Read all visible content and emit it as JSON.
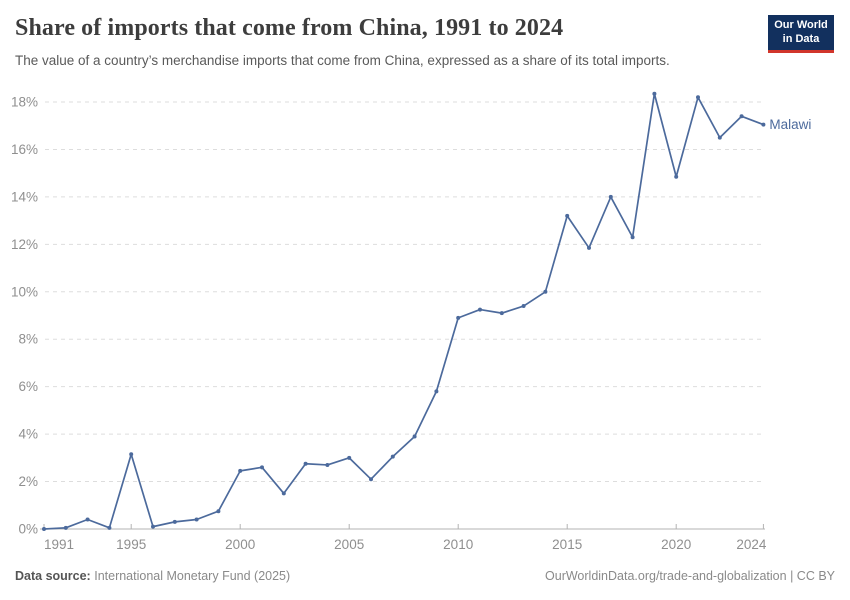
{
  "header": {
    "title": "Share of imports that come from China, 1991 to 2024",
    "subtitle": "The value of a country’s merchandise imports that come from China, expressed as a share of its total imports."
  },
  "logo": {
    "line1": "Our World",
    "line2": "in Data",
    "bg_color": "#12305e",
    "accent_color": "#d1352b"
  },
  "chart_data": {
    "type": "line",
    "title": "Share of imports that come from China, 1991 to 2024",
    "entity": "Malawi",
    "unit": "%",
    "x": [
      1991,
      1992,
      1993,
      1994,
      1995,
      1996,
      1997,
      1998,
      1999,
      2000,
      2001,
      2002,
      2003,
      2004,
      2005,
      2006,
      2007,
      2008,
      2009,
      2010,
      2011,
      2012,
      2013,
      2014,
      2015,
      2016,
      2017,
      2018,
      2019,
      2020,
      2021,
      2022,
      2023,
      2024
    ],
    "series": [
      {
        "name": "Malawi",
        "color": "#4c6a9c",
        "values": [
          0.0,
          0.05,
          0.4,
          0.05,
          3.15,
          0.1,
          0.3,
          0.4,
          0.75,
          2.45,
          2.6,
          1.5,
          2.75,
          2.7,
          3.0,
          2.1,
          3.05,
          3.9,
          5.8,
          8.9,
          9.25,
          9.1,
          9.4,
          10.0,
          13.2,
          11.85,
          14.0,
          12.3,
          18.35,
          14.85,
          18.2,
          16.5,
          17.4,
          17.05
        ]
      }
    ],
    "ylim": [
      0,
      18
    ],
    "ytick_step": 2,
    "ytick_labels": [
      "0%",
      "2%",
      "4%",
      "6%",
      "8%",
      "10%",
      "12%",
      "14%",
      "16%",
      "18%"
    ],
    "xticks": [
      1991,
      1995,
      2000,
      2005,
      2010,
      2015,
      2020,
      2024
    ],
    "grid": "horizontal-dashed",
    "legend_position": "end-of-line",
    "colors": {
      "grid": "#dddddd",
      "axis": "#b3b3b3",
      "tick_label": "#8f8f8f"
    }
  },
  "footer": {
    "source_label": "Data source:",
    "source_value": "International Monetary Fund (2025)",
    "url": "OurWorldinData.org/trade-and-globalization",
    "separator": " | ",
    "license": "CC BY"
  }
}
